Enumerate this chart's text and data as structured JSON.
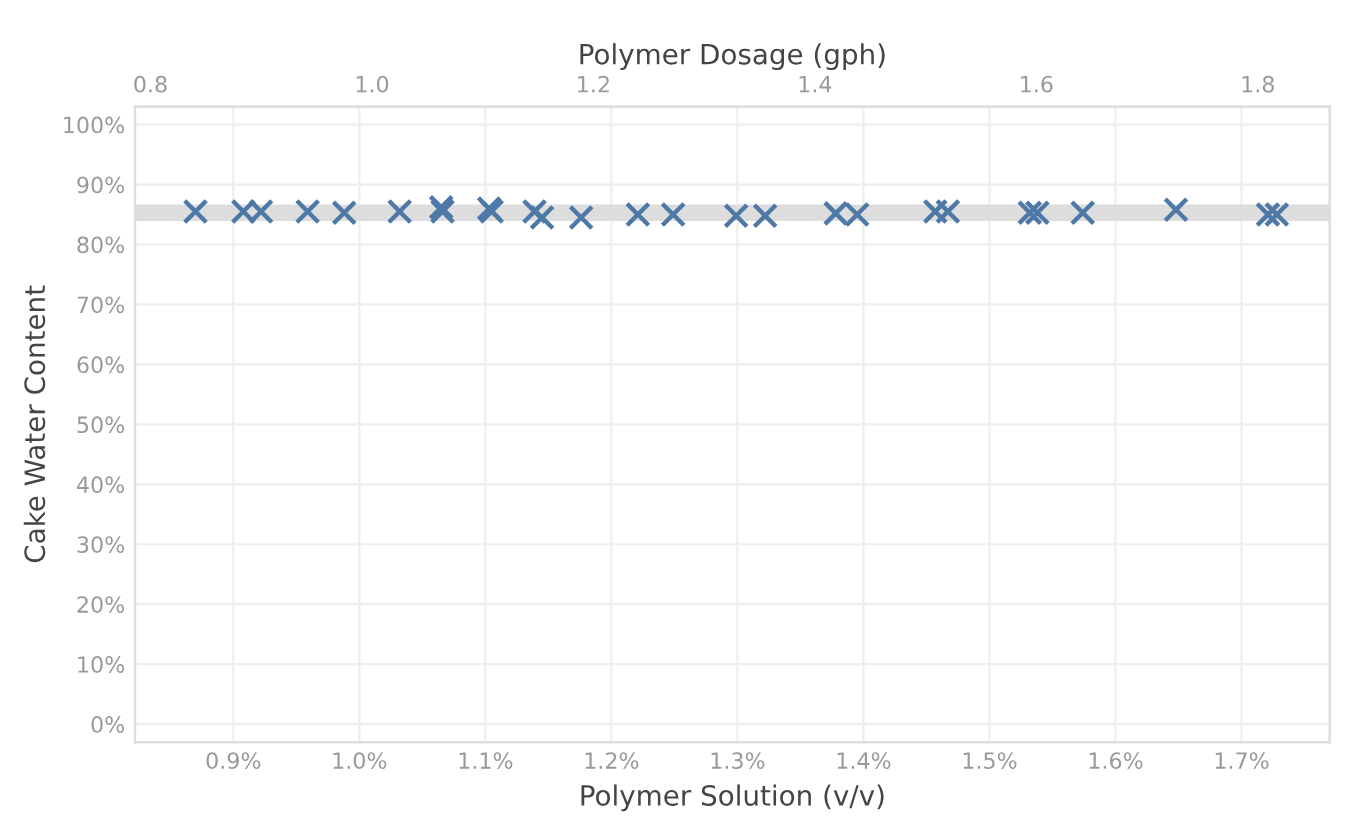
{
  "chart_data": {
    "type": "scatter",
    "xlabel": "Polymer Solution (v/v)",
    "x2label": "Polymer Dosage (gph)",
    "ylabel": "Cake Water Content",
    "x": [
      0.87,
      0.908,
      0.922,
      0.959,
      0.988,
      1.032,
      1.065,
      1.066,
      1.103,
      1.105,
      1.139,
      1.145,
      1.176,
      1.221,
      1.249,
      1.299,
      1.322,
      1.378,
      1.395,
      1.457,
      1.467,
      1.532,
      1.538,
      1.574,
      1.648,
      1.721,
      1.728
    ],
    "series": [
      {
        "color": "#4e79a7",
        "values": [
          85.5,
          85.5,
          85.5,
          85.5,
          85.3,
          85.5,
          86.2,
          85.5,
          86.0,
          85.5,
          85.5,
          84.5,
          84.5,
          85.0,
          85.0,
          84.8,
          84.8,
          85.2,
          85.0,
          85.5,
          85.5,
          85.3,
          85.3,
          85.3,
          85.8,
          85.0,
          85.0
        ]
      }
    ],
    "marker": "cross",
    "xlim": [
      0.822,
      1.77
    ],
    "xticks": [
      {
        "value": 0.9,
        "label": "0.9%"
      },
      {
        "value": 1.0,
        "label": "1.0%"
      },
      {
        "value": 1.1,
        "label": "1.1%"
      },
      {
        "value": 1.2,
        "label": "1.2%"
      },
      {
        "value": 1.3,
        "label": "1.3%"
      },
      {
        "value": 1.4,
        "label": "1.4%"
      },
      {
        "value": 1.5,
        "label": "1.5%"
      },
      {
        "value": 1.6,
        "label": "1.6%"
      },
      {
        "value": 1.7,
        "label": "1.7%"
      }
    ],
    "x2lim": [
      0.786,
      1.865
    ],
    "x2ticks": [
      0.8,
      {
        "value": 1.0,
        "label": "1.0"
      },
      1.2,
      1.4,
      1.6,
      1.8
    ],
    "ylim": [
      -3,
      103
    ],
    "yticks": [
      {
        "value": 0,
        "label": "0%"
      },
      {
        "value": 10,
        "label": "10%"
      },
      {
        "value": 20,
        "label": "20%"
      },
      {
        "value": 30,
        "label": "30%"
      },
      {
        "value": 40,
        "label": "40%"
      },
      {
        "value": 50,
        "label": "50%"
      },
      {
        "value": 60,
        "label": "60%"
      },
      {
        "value": 70,
        "label": "70%"
      },
      {
        "value": 80,
        "label": "80%"
      },
      {
        "value": 90,
        "label": "90%"
      },
      {
        "value": 100,
        "label": "100%"
      }
    ],
    "ref_lines": [
      {
        "axis": "y",
        "value": 85.3,
        "color": "#dddddd"
      }
    ],
    "grid": true
  }
}
